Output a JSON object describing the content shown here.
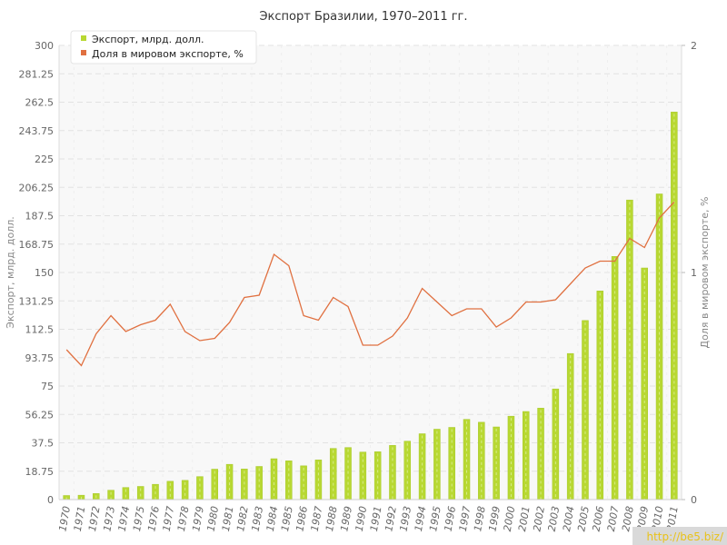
{
  "chart_data": {
    "type": "bar+line",
    "title": "Экспорт Бразилии, 1970–2011 гг.",
    "y_left_label": "Экспорт, млрд. долл.",
    "y_right_label": "Доля в мировом экспорте, %",
    "y_left_range": [
      0,
      300
    ],
    "y_right_range": [
      0,
      2
    ],
    "y_left_ticks": [
      "0",
      "18.75",
      "37.5",
      "56.25",
      "75",
      "93.75",
      "112.5",
      "131.25",
      "150",
      "168.75",
      "187.5",
      "206.25",
      "225",
      "243.75",
      "262.5",
      "281.25",
      "300"
    ],
    "y_right_ticks": [
      "0",
      "1",
      "2"
    ],
    "grid": true,
    "legend_position": "top-left",
    "categories": [
      "1970",
      "1971",
      "1972",
      "1973",
      "1974",
      "1975",
      "1976",
      "1977",
      "1978",
      "1979",
      "1980",
      "1981",
      "1982",
      "1983",
      "1984",
      "1985",
      "1986",
      "1987",
      "1988",
      "1989",
      "1990",
      "1991",
      "1992",
      "1993",
      "1994",
      "1995",
      "1996",
      "1997",
      "1998",
      "1999",
      "2000",
      "2001",
      "2002",
      "2003",
      "2004",
      "2005",
      "2006",
      "2007",
      "2008",
      "2009",
      "2010",
      "2011"
    ],
    "series": [
      {
        "name": "Экспорт, млрд. долл.",
        "type": "bar",
        "axis": "left",
        "color": "#b8d832",
        "values": [
          2.7,
          2.9,
          4.0,
          6.2,
          8.0,
          8.7,
          10.1,
          12.1,
          12.7,
          15.2,
          20.1,
          23.3,
          20.2,
          21.9,
          27.0,
          25.6,
          22.3,
          26.2,
          33.8,
          34.4,
          31.4,
          31.6,
          35.8,
          38.6,
          43.5,
          46.5,
          47.7,
          53.0,
          51.1,
          48.0,
          55.1,
          58.2,
          60.4,
          73.1,
          96.5,
          118.3,
          137.8,
          160.6,
          197.9,
          153.0,
          201.9,
          256.0
        ]
      },
      {
        "name": "Доля в мировом экспорте, %",
        "type": "line",
        "axis": "right",
        "color": "#e07040",
        "values": [
          0.66,
          0.59,
          0.73,
          0.81,
          0.74,
          0.77,
          0.79,
          0.86,
          0.74,
          0.7,
          0.71,
          0.78,
          0.89,
          0.9,
          1.08,
          1.03,
          0.81,
          0.79,
          0.89,
          0.85,
          0.68,
          0.68,
          0.72,
          0.8,
          0.93,
          0.87,
          0.81,
          0.84,
          0.84,
          0.76,
          0.8,
          0.87,
          0.87,
          0.88,
          0.95,
          1.02,
          1.05,
          1.05,
          1.15,
          1.11,
          1.24,
          1.31
        ]
      }
    ]
  },
  "watermark": "http://be5.biz/"
}
